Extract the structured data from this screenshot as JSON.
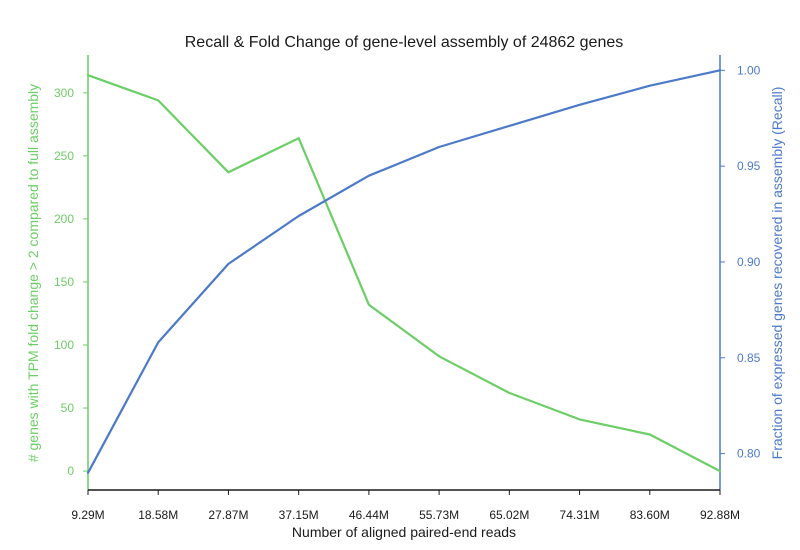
{
  "chart_data": {
    "type": "line",
    "title": "Recall & Fold Change of gene-level assembly of 24862 genes",
    "xlabel": "Number of aligned paired-end reads",
    "categories": [
      "9.29M",
      "18.58M",
      "27.87M",
      "37.15M",
      "46.44M",
      "55.73M",
      "65.02M",
      "74.31M",
      "83.60M",
      "92.88M"
    ],
    "left_axis": {
      "label": "# genes with TPM fold change > 2 compared to full assembly",
      "ylim": [
        -15,
        330
      ],
      "ticks": [
        0,
        50,
        100,
        150,
        200,
        250,
        300
      ],
      "color": "#6cce66"
    },
    "right_axis": {
      "label": "Fraction of expressed genes recovered in assembly (Recall)",
      "ylim": [
        0.781,
        1.008
      ],
      "ticks": [
        "0.80",
        "0.85",
        "0.90",
        "0.95",
        "1.00"
      ],
      "color": "#4c7ac8"
    },
    "series": [
      {
        "axis": "left",
        "color": "#6cce66",
        "values": [
          314,
          294,
          237,
          264,
          132,
          91,
          62,
          41,
          29,
          0
        ]
      },
      {
        "axis": "right",
        "color": "#4c7ac8",
        "values": [
          0.79,
          0.858,
          0.899,
          0.924,
          0.945,
          0.96,
          0.971,
          0.982,
          0.992,
          1.0
        ]
      }
    ],
    "grid": false
  }
}
